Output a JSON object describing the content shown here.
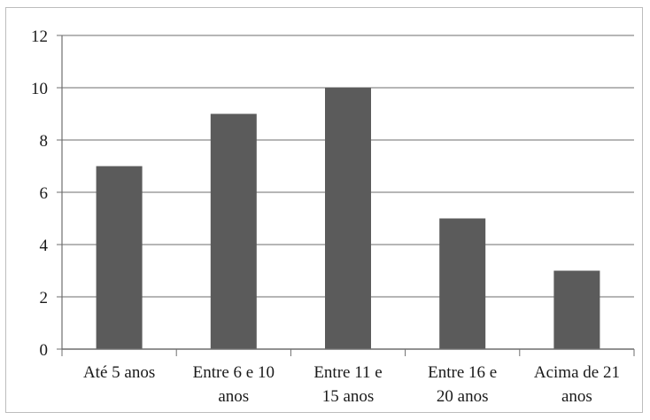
{
  "chart_data": {
    "type": "bar",
    "categories": [
      [
        "Até 5 anos"
      ],
      [
        "Entre 6 e 10",
        "anos"
      ],
      [
        "Entre 11 e",
        "15 anos"
      ],
      [
        "Entre 16 e",
        "20 anos"
      ],
      [
        "Acima de 21",
        "anos"
      ]
    ],
    "values": [
      7,
      9,
      10,
      5,
      3
    ],
    "ylim": [
      0,
      12
    ],
    "yticks": [
      "0",
      "2",
      "4",
      "6",
      "8",
      "10",
      "12"
    ],
    "grid": true,
    "legend": "none",
    "colors": {
      "bar": "#5b5b5b",
      "grid": "#8a8a8a",
      "axis": "#6e6e6e"
    }
  }
}
